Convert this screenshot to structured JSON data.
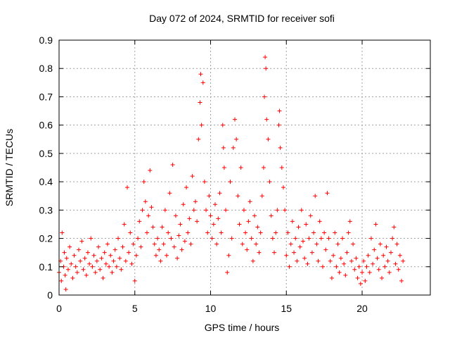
{
  "chart_data": {
    "type": "scatter",
    "title": "Day 072 of 2024, SRMTID for receiver sofi",
    "xlabel": "GPS time / hours",
    "ylabel": "SRMTID / TECUs",
    "xlim": [
      0,
      24.5
    ],
    "ylim": [
      0,
      0.9
    ],
    "xticks": [
      0,
      5,
      10,
      15,
      20
    ],
    "xtick_labels": [
      "0",
      "5",
      "10",
      "15",
      "20"
    ],
    "yticks": [
      0,
      0.1,
      0.2,
      0.3,
      0.4,
      0.5,
      0.6,
      0.7,
      0.8,
      0.9
    ],
    "ytick_labels": [
      "0",
      "0.1",
      "0.2",
      "0.3",
      "0.4",
      "0.5",
      "0.6",
      "0.7",
      "0.8",
      "0.9"
    ],
    "grid": true,
    "marker": "+",
    "series": [
      {
        "name": "SRMTID",
        "color": "#ff0000",
        "points": [
          [
            0.0,
            0.08
          ],
          [
            0.1,
            0.12
          ],
          [
            0.15,
            0.05
          ],
          [
            0.2,
            0.22
          ],
          [
            0.3,
            0.1
          ],
          [
            0.35,
            0.15
          ],
          [
            0.4,
            0.07
          ],
          [
            0.45,
            0.02
          ],
          [
            0.5,
            0.13
          ],
          [
            0.6,
            0.09
          ],
          [
            0.7,
            0.17
          ],
          [
            0.8,
            0.11
          ],
          [
            0.9,
            0.06
          ],
          [
            1.0,
            0.14
          ],
          [
            1.1,
            0.1
          ],
          [
            1.2,
            0.08
          ],
          [
            1.3,
            0.16
          ],
          [
            1.4,
            0.12
          ],
          [
            1.5,
            0.19
          ],
          [
            1.6,
            0.09
          ],
          [
            1.7,
            0.13
          ],
          [
            1.8,
            0.07
          ],
          [
            1.9,
            0.15
          ],
          [
            2.0,
            0.11
          ],
          [
            2.1,
            0.2
          ],
          [
            2.2,
            0.1
          ],
          [
            2.3,
            0.14
          ],
          [
            2.4,
            0.08
          ],
          [
            2.5,
            0.12
          ],
          [
            2.6,
            0.17
          ],
          [
            2.7,
            0.09
          ],
          [
            2.8,
            0.13
          ],
          [
            2.9,
            0.06
          ],
          [
            3.0,
            0.15
          ],
          [
            3.1,
            0.11
          ],
          [
            3.2,
            0.18
          ],
          [
            3.3,
            0.1
          ],
          [
            3.4,
            0.14
          ],
          [
            3.5,
            0.08
          ],
          [
            3.6,
            0.12
          ],
          [
            3.7,
            0.16
          ],
          [
            3.8,
            0.1
          ],
          [
            3.9,
            0.2
          ],
          [
            4.0,
            0.13
          ],
          [
            4.1,
            0.09
          ],
          [
            4.2,
            0.17
          ],
          [
            4.3,
            0.25
          ],
          [
            4.4,
            0.12
          ],
          [
            4.5,
            0.38
          ],
          [
            4.6,
            0.15
          ],
          [
            4.7,
            0.22
          ],
          [
            4.8,
            0.11
          ],
          [
            4.9,
            0.18
          ],
          [
            5.0,
            0.05
          ],
          [
            5.1,
            0.14
          ],
          [
            5.2,
            0.2
          ],
          [
            5.3,
            0.26
          ],
          [
            5.4,
            0.17
          ],
          [
            5.5,
            0.3
          ],
          [
            5.6,
            0.4
          ],
          [
            5.7,
            0.33
          ],
          [
            5.8,
            0.22
          ],
          [
            5.9,
            0.28
          ],
          [
            6.0,
            0.44
          ],
          [
            6.1,
            0.31
          ],
          [
            6.2,
            0.24
          ],
          [
            6.3,
            0.18
          ],
          [
            6.4,
            0.14
          ],
          [
            6.5,
            0.2
          ],
          [
            6.6,
            0.16
          ],
          [
            6.7,
            0.12
          ],
          [
            6.8,
            0.24
          ],
          [
            6.9,
            0.18
          ],
          [
            7.0,
            0.3
          ],
          [
            7.1,
            0.14
          ],
          [
            7.2,
            0.22
          ],
          [
            7.3,
            0.36
          ],
          [
            7.4,
            0.2
          ],
          [
            7.5,
            0.46
          ],
          [
            7.6,
            0.17
          ],
          [
            7.7,
            0.28
          ],
          [
            7.8,
            0.13
          ],
          [
            7.9,
            0.21
          ],
          [
            8.0,
            0.25
          ],
          [
            8.1,
            0.16
          ],
          [
            8.2,
            0.32
          ],
          [
            8.3,
            0.19
          ],
          [
            8.4,
            0.38
          ],
          [
            8.5,
            0.22
          ],
          [
            8.6,
            0.27
          ],
          [
            8.7,
            0.18
          ],
          [
            8.8,
            0.42
          ],
          [
            8.9,
            0.3
          ],
          [
            9.0,
            0.33
          ],
          [
            9.1,
            0.26
          ],
          [
            9.2,
            0.55
          ],
          [
            9.3,
            0.68
          ],
          [
            9.35,
            0.78
          ],
          [
            9.4,
            0.6
          ],
          [
            9.5,
            0.75
          ],
          [
            9.6,
            0.4
          ],
          [
            9.7,
            0.3
          ],
          [
            9.8,
            0.22
          ],
          [
            9.9,
            0.35
          ],
          [
            10.0,
            0.28
          ],
          [
            10.1,
            0.2
          ],
          [
            10.2,
            0.25
          ],
          [
            10.3,
            0.32
          ],
          [
            10.4,
            0.18
          ],
          [
            10.5,
            0.27
          ],
          [
            10.6,
            0.36
          ],
          [
            10.7,
            0.22
          ],
          [
            10.8,
            0.6
          ],
          [
            10.85,
            0.52
          ],
          [
            10.9,
            0.45
          ],
          [
            11.0,
            0.3
          ],
          [
            11.1,
            0.08
          ],
          [
            11.2,
            0.14
          ],
          [
            11.3,
            0.4
          ],
          [
            11.4,
            0.2
          ],
          [
            11.5,
            0.52
          ],
          [
            11.6,
            0.62
          ],
          [
            11.7,
            0.55
          ],
          [
            11.8,
            0.35
          ],
          [
            11.9,
            0.25
          ],
          [
            12.0,
            0.45
          ],
          [
            12.1,
            0.18
          ],
          [
            12.2,
            0.3
          ],
          [
            12.3,
            0.22
          ],
          [
            12.4,
            0.16
          ],
          [
            12.5,
            0.26
          ],
          [
            12.6,
            0.33
          ],
          [
            12.7,
            0.2
          ],
          [
            12.8,
            0.12
          ],
          [
            12.9,
            0.28
          ],
          [
            13.0,
            0.18
          ],
          [
            13.1,
            0.24
          ],
          [
            13.2,
            0.15
          ],
          [
            13.3,
            0.22
          ],
          [
            13.4,
            0.35
          ],
          [
            13.5,
            0.45
          ],
          [
            13.55,
            0.7
          ],
          [
            13.6,
            0.84
          ],
          [
            13.65,
            0.8
          ],
          [
            13.7,
            0.62
          ],
          [
            13.8,
            0.55
          ],
          [
            13.9,
            0.4
          ],
          [
            14.0,
            0.28
          ],
          [
            14.1,
            0.2
          ],
          [
            14.2,
            0.15
          ],
          [
            14.3,
            0.22
          ],
          [
            14.4,
            0.3
          ],
          [
            14.5,
            0.6
          ],
          [
            14.55,
            0.65
          ],
          [
            14.6,
            0.52
          ],
          [
            14.7,
            0.45
          ],
          [
            14.8,
            0.38
          ],
          [
            14.9,
            0.3
          ],
          [
            15.0,
            0.14
          ],
          [
            15.1,
            0.22
          ],
          [
            15.2,
            0.1
          ],
          [
            15.3,
            0.18
          ],
          [
            15.4,
            0.26
          ],
          [
            15.5,
            0.15
          ],
          [
            15.6,
            0.2
          ],
          [
            15.7,
            0.12
          ],
          [
            15.8,
            0.24
          ],
          [
            15.9,
            0.17
          ],
          [
            16.0,
            0.3
          ],
          [
            16.1,
            0.19
          ],
          [
            16.2,
            0.13
          ],
          [
            16.3,
            0.25
          ],
          [
            16.4,
            0.11
          ],
          [
            16.5,
            0.2
          ],
          [
            16.6,
            0.28
          ],
          [
            16.7,
            0.15
          ],
          [
            16.8,
            0.22
          ],
          [
            16.9,
            0.35
          ],
          [
            17.0,
            0.18
          ],
          [
            17.1,
            0.12
          ],
          [
            17.2,
            0.26
          ],
          [
            17.3,
            0.2
          ],
          [
            17.4,
            0.1
          ],
          [
            17.5,
            0.22
          ],
          [
            17.6,
            0.16
          ],
          [
            17.7,
            0.36
          ],
          [
            17.8,
            0.2
          ],
          [
            17.9,
            0.12
          ],
          [
            18.0,
            0.06
          ],
          [
            18.1,
            0.14
          ],
          [
            18.2,
            0.22
          ],
          [
            18.3,
            0.1
          ],
          [
            18.4,
            0.18
          ],
          [
            18.5,
            0.08
          ],
          [
            18.6,
            0.13
          ],
          [
            18.7,
            0.2
          ],
          [
            18.8,
            0.11
          ],
          [
            18.9,
            0.07
          ],
          [
            19.0,
            0.15
          ],
          [
            19.1,
            0.22
          ],
          [
            19.2,
            0.26
          ],
          [
            19.3,
            0.12
          ],
          [
            19.4,
            0.18
          ],
          [
            19.5,
            0.09
          ],
          [
            19.6,
            0.13
          ],
          [
            19.7,
            0.06
          ],
          [
            19.8,
            0.1
          ],
          [
            19.9,
            0.04
          ],
          [
            20.0,
            0.08
          ],
          [
            20.1,
            0.12
          ],
          [
            20.2,
            0.05
          ],
          [
            20.3,
            0.1
          ],
          [
            20.4,
            0.14
          ],
          [
            20.5,
            0.08
          ],
          [
            20.6,
            0.2
          ],
          [
            20.7,
            0.11
          ],
          [
            20.8,
            0.16
          ],
          [
            20.9,
            0.25
          ],
          [
            21.0,
            0.13
          ],
          [
            21.1,
            0.09
          ],
          [
            21.2,
            0.18
          ],
          [
            21.3,
            0.06
          ],
          [
            21.4,
            0.14
          ],
          [
            21.5,
            0.1
          ],
          [
            21.6,
            0.17
          ],
          [
            21.7,
            0.12
          ],
          [
            21.8,
            0.08
          ],
          [
            21.9,
            0.15
          ],
          [
            22.0,
            0.2
          ],
          [
            22.1,
            0.24
          ],
          [
            22.2,
            0.11
          ],
          [
            22.3,
            0.18
          ],
          [
            22.4,
            0.09
          ],
          [
            22.5,
            0.14
          ],
          [
            22.6,
            0.05
          ],
          [
            22.7,
            0.12
          ]
        ]
      }
    ]
  }
}
